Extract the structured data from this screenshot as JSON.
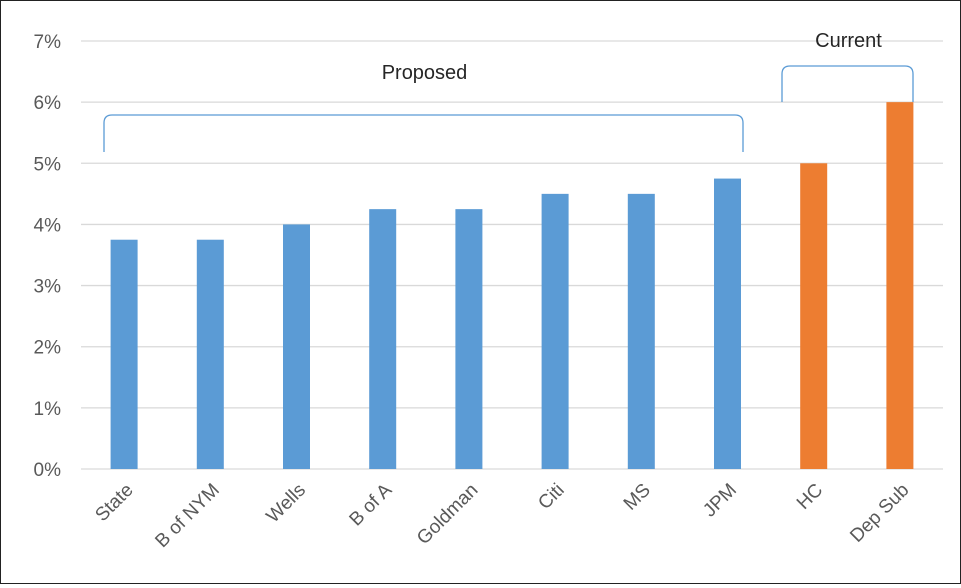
{
  "chart_data": {
    "type": "bar",
    "categories": [
      "State",
      "B of NYM",
      "Wells",
      "B of A",
      "Goldman",
      "Citi",
      "MS",
      "JPM",
      "HC",
      "Dep Sub"
    ],
    "values": [
      3.75,
      3.75,
      4.0,
      4.25,
      4.25,
      4.5,
      4.5,
      4.75,
      5.0,
      6.0
    ],
    "bar_colors": [
      "#5B9BD5",
      "#5B9BD5",
      "#5B9BD5",
      "#5B9BD5",
      "#5B9BD5",
      "#5B9BD5",
      "#5B9BD5",
      "#5B9BD5",
      "#ED7D31",
      "#ED7D31"
    ],
    "title": "",
    "xlabel": "",
    "ylabel": "",
    "ylim": [
      0,
      7
    ],
    "yticks": [
      "0%",
      "1%",
      "2%",
      "3%",
      "4%",
      "5%",
      "6%",
      "7%"
    ],
    "grid": true,
    "legend": "none",
    "annotations": [
      {
        "text": "Proposed",
        "range": [
          "State",
          "JPM"
        ],
        "brace_color": "#5B9BD5"
      },
      {
        "text": "Current",
        "range": [
          "HC",
          "Dep Sub"
        ],
        "brace_color": "#5B9BD5"
      }
    ]
  }
}
